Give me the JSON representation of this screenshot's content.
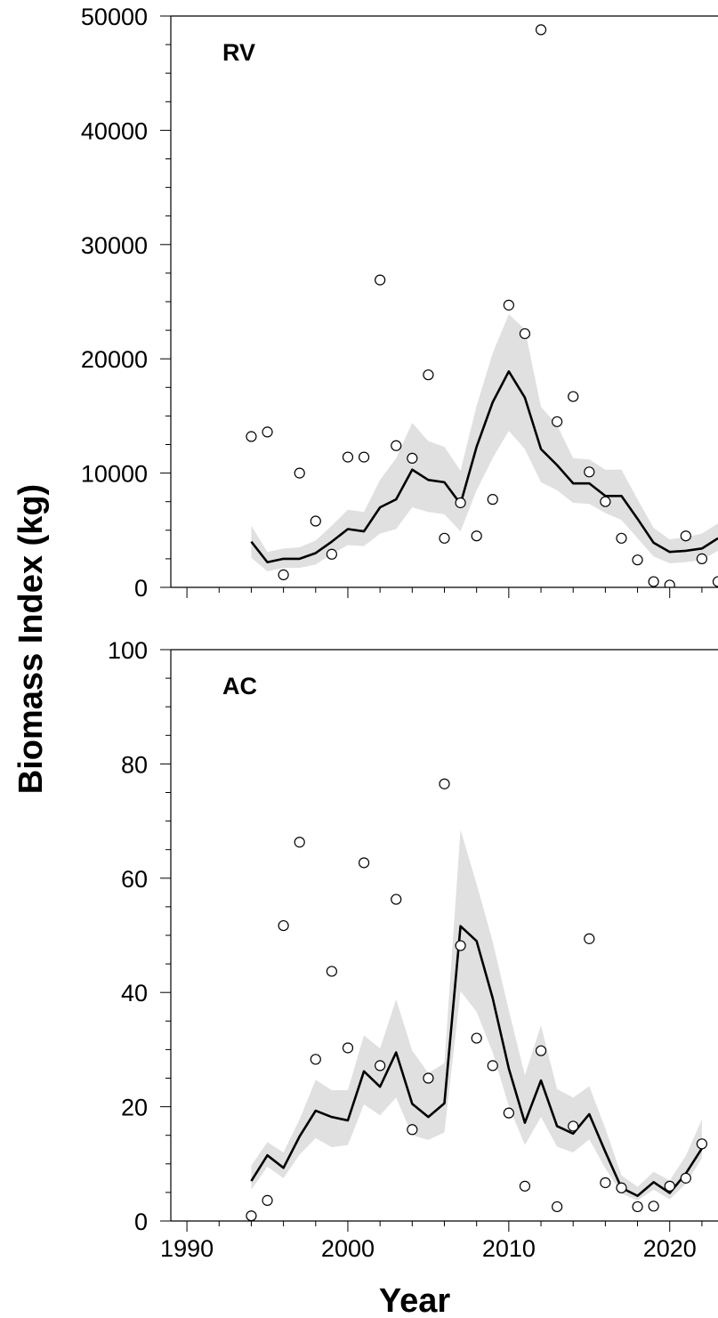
{
  "chart_data": {
    "type": "line",
    "xlabel": "Year",
    "ylabel": "Biomass Index (kg)",
    "xlim": [
      1989,
      2023
    ],
    "x_ticks": [
      1990,
      2000,
      2010,
      2020
    ],
    "x_tick_labels": [
      "1990",
      "2000",
      "2010",
      "2020"
    ],
    "colors": {
      "line": "#000000",
      "band": "#e0e0e0",
      "points_fill": "#ffffff",
      "points_edge": "#000000"
    },
    "panels": [
      {
        "label": "RV",
        "ylim": [
          0,
          50000
        ],
        "y_ticks": [
          0,
          10000,
          20000,
          30000,
          40000,
          50000
        ],
        "y_tick_labels": [
          "0",
          "10000",
          "20000",
          "30000",
          "40000",
          "50000"
        ],
        "reference_line": 0,
        "fit": {
          "x": [
            1994,
            1995,
            1996,
            1997,
            1998,
            1999,
            2000,
            2001,
            2002,
            2003,
            2004,
            2005,
            2006,
            2007,
            2008,
            2009,
            2010,
            2011,
            2012,
            2013,
            2014,
            2015,
            2016,
            2017,
            2018,
            2019,
            2020,
            2021,
            2022,
            2023
          ],
          "y": [
            4000,
            2200,
            2500,
            2500,
            3000,
            4000,
            5100,
            4900,
            7000,
            7700,
            10300,
            9400,
            9200,
            7300,
            12300,
            16200,
            18900,
            16600,
            12100,
            10700,
            9100,
            9100,
            8000,
            8000,
            6000,
            3900,
            3100,
            3200,
            3400,
            4300
          ]
        },
        "band": {
          "lower": [
            2600,
            1400,
            1700,
            1700,
            2000,
            2900,
            3700,
            3600,
            4700,
            5100,
            7000,
            6600,
            6400,
            4900,
            8500,
            11300,
            13700,
            12100,
            9200,
            8500,
            7400,
            7300,
            6500,
            5900,
            4300,
            2700,
            2100,
            2200,
            2400,
            3200
          ],
          "upper": [
            5400,
            3100,
            3400,
            3500,
            4100,
            5400,
            6800,
            6600,
            9400,
            11300,
            14400,
            12800,
            12300,
            10200,
            15900,
            20500,
            23900,
            22600,
            15800,
            14200,
            11300,
            11200,
            10300,
            10300,
            7700,
            5200,
            4200,
            4400,
            4700,
            5600
          ]
        },
        "observed": {
          "x": [
            1994,
            1995,
            1996,
            1997,
            1998,
            1999,
            2000,
            2001,
            2002,
            2003,
            2004,
            2005,
            2006,
            2007,
            2008,
            2009,
            2010,
            2011,
            2012,
            2013,
            2014,
            2015,
            2016,
            2017,
            2018,
            2019,
            2020,
            2021,
            2022,
            2023
          ],
          "y": [
            13200,
            13600,
            1100,
            10000,
            5800,
            2900,
            11400,
            11400,
            26900,
            12400,
            11300,
            18600,
            4300,
            7400,
            4500,
            7700,
            24700,
            22200,
            48800,
            14500,
            16700,
            10100,
            7500,
            4300,
            2400,
            500,
            200,
            4500,
            2500,
            500
          ]
        }
      },
      {
        "label": "AC",
        "ylim": [
          0,
          100
        ],
        "y_ticks": [
          0,
          20,
          40,
          60,
          80,
          100
        ],
        "y_tick_labels": [
          "0",
          "20",
          "40",
          "60",
          "80",
          "100"
        ],
        "reference_line": 0,
        "fit": {
          "x": [
            1994,
            1995,
            1996,
            1997,
            1998,
            1999,
            2000,
            2001,
            2002,
            2003,
            2004,
            2005,
            2006,
            2007,
            2008,
            2009,
            2010,
            2011,
            2012,
            2013,
            2014,
            2015,
            2016,
            2017,
            2018,
            2019,
            2020,
            2021,
            2022
          ],
          "y": [
            7.0,
            11.5,
            9.3,
            14.8,
            19.3,
            18.2,
            17.6,
            26.2,
            23.5,
            29.5,
            20.5,
            18.2,
            20.6,
            51.6,
            49.0,
            39.0,
            26.7,
            17.2,
            24.6,
            16.6,
            15.3,
            18.7,
            12.1,
            5.8,
            4.4,
            6.8,
            4.9,
            8.3,
            12.7
          ]
        },
        "band": {
          "lower": [
            5.5,
            9.5,
            7.5,
            11.6,
            14.5,
            12.9,
            13.3,
            20.4,
            18.5,
            21.6,
            15.0,
            14.2,
            15.5,
            40.2,
            36.6,
            29.5,
            20.1,
            13.3,
            18.2,
            13.0,
            12.0,
            14.3,
            9.2,
            4.8,
            3.6,
            5.5,
            3.8,
            6.5,
            11.0
          ],
          "upper": [
            9.7,
            13.8,
            12.0,
            17.8,
            24.7,
            22.9,
            22.9,
            32.5,
            30.2,
            38.8,
            29.8,
            25.9,
            27.6,
            68.5,
            59.0,
            48.9,
            36.9,
            25.5,
            34.2,
            23.1,
            21.6,
            23.6,
            16.2,
            8.0,
            6.0,
            8.6,
            7.1,
            11.4,
            17.8
          ]
        },
        "observed": {
          "x": [
            1994,
            1995,
            1996,
            1997,
            1998,
            1999,
            2000,
            2001,
            2002,
            2003,
            2004,
            2005,
            2006,
            2007,
            2008,
            2009,
            2010,
            2011,
            2012,
            2013,
            2014,
            2015,
            2016,
            2017,
            2018,
            2019,
            2020,
            2021,
            2022
          ],
          "y": [
            0.9,
            3.6,
            51.7,
            66.3,
            28.3,
            43.7,
            30.3,
            62.7,
            27.2,
            56.3,
            16.0,
            25.0,
            76.5,
            48.2,
            32.0,
            27.2,
            18.9,
            6.1,
            29.8,
            2.5,
            16.6,
            49.4,
            6.7,
            5.8,
            2.5,
            2.6,
            6.1,
            7.5,
            13.5
          ]
        }
      }
    ]
  }
}
